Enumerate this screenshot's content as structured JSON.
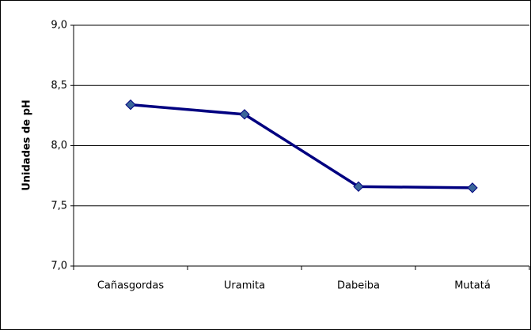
{
  "chart_data": {
    "type": "line",
    "y_label": "Unidades de pH",
    "categories": [
      "Cañasgordas",
      "Uramita",
      "Dabeiba",
      "Mutatá"
    ],
    "series": [
      {
        "name": "pH",
        "color": "#000080",
        "marker_color": "#3a6699",
        "values": [
          8.34,
          8.26,
          7.66,
          7.65
        ]
      }
    ],
    "ylim": [
      7,
      9
    ],
    "yticks": [
      {
        "value": 7,
        "label": "7,0"
      },
      {
        "value": 7.5,
        "label": "7,5"
      },
      {
        "value": 8,
        "label": "8,0"
      },
      {
        "value": 8.5,
        "label": "8,5"
      },
      {
        "value": 9,
        "label": "9,0"
      }
    ],
    "grid": true
  }
}
